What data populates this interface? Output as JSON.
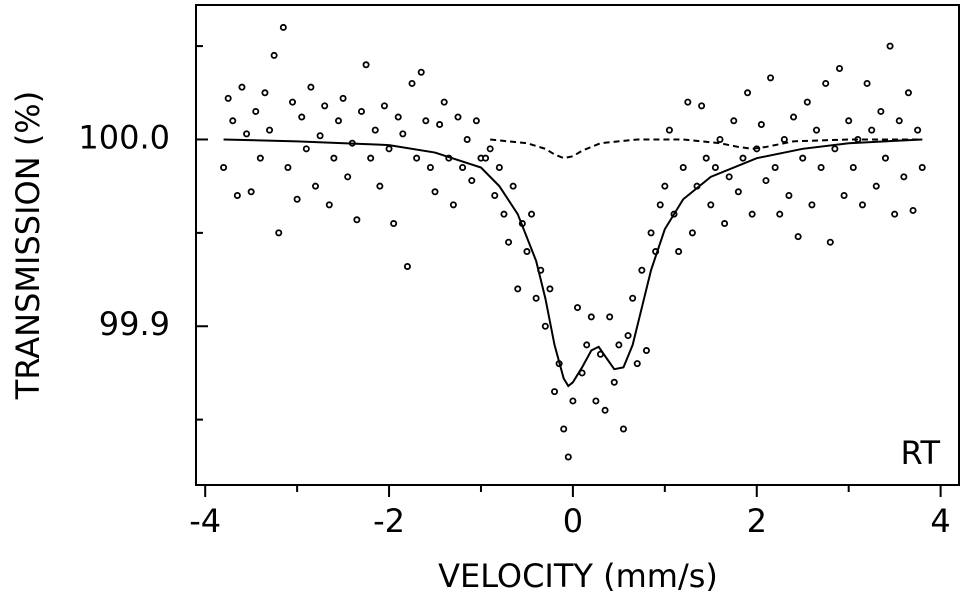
{
  "chart_data": {
    "type": "scatter",
    "xlabel": "VELOCITY (mm/s)",
    "ylabel": "TRANSMISSION (%)",
    "annotation": "RT",
    "xlim": [
      -4.1,
      4.2
    ],
    "ylim": [
      99.815,
      100.072
    ],
    "xticks": [
      -4,
      -2,
      0,
      2,
      4
    ],
    "xminor_ticks": [
      -3,
      -1,
      1,
      3
    ],
    "yticks": [
      {
        "value": 100,
        "label": "100.0"
      },
      99.9
    ],
    "yminor_ticks": [
      99.85,
      99.95,
      100.05
    ],
    "series": [
      {
        "type": "scatter",
        "color": "#000000",
        "x": [
          -3.8,
          -3.75,
          -3.7,
          -3.65,
          -3.6,
          -3.55,
          -3.5,
          -3.45,
          -3.4,
          -3.35,
          -3.3,
          -3.25,
          -3.2,
          -3.15,
          -3.1,
          -3.05,
          -3.0,
          -2.95,
          -2.9,
          -2.85,
          -2.8,
          -2.75,
          -2.7,
          -2.65,
          -2.6,
          -2.55,
          -2.5,
          -2.45,
          -2.4,
          -2.35,
          -2.3,
          -2.25,
          -2.2,
          -2.15,
          -2.1,
          -2.05,
          -2.0,
          -1.95,
          -1.9,
          -1.85,
          -1.8,
          -1.75,
          -1.7,
          -1.65,
          -1.6,
          -1.55,
          -1.5,
          -1.45,
          -1.4,
          -1.35,
          -1.3,
          -1.25,
          -1.2,
          -1.15,
          -1.1,
          -1.05,
          -1.0,
          -0.95,
          -0.9,
          -0.85,
          -0.8,
          -0.75,
          -0.7,
          -0.65,
          -0.6,
          -0.55,
          -0.5,
          -0.45,
          -0.4,
          -0.35,
          -0.3,
          -0.25,
          -0.2,
          -0.15,
          -0.1,
          -0.05,
          0,
          0.05,
          0.1,
          0.15,
          0.2,
          0.25,
          0.3,
          0.35,
          0.4,
          0.45,
          0.5,
          0.55,
          0.6,
          0.65,
          0.7,
          0.75,
          0.8,
          0.85,
          0.9,
          0.95,
          1.0,
          1.05,
          1.1,
          1.15,
          1.2,
          1.25,
          1.3,
          1.35,
          1.4,
          1.45,
          1.5,
          1.55,
          1.6,
          1.65,
          1.7,
          1.75,
          1.8,
          1.85,
          1.9,
          1.95,
          2.0,
          2.05,
          2.1,
          2.15,
          2.2,
          2.25,
          2.3,
          2.35,
          2.4,
          2.45,
          2.5,
          2.55,
          2.6,
          2.65,
          2.7,
          2.75,
          2.8,
          2.85,
          2.9,
          2.95,
          3.0,
          3.05,
          3.1,
          3.15,
          3.2,
          3.25,
          3.3,
          3.35,
          3.4,
          3.45,
          3.5,
          3.55,
          3.6,
          3.65,
          3.7,
          3.75,
          3.8
        ],
        "values": [
          99.985,
          100.022,
          100.01,
          99.97,
          100.028,
          100.003,
          99.972,
          100.015,
          99.99,
          100.025,
          100.005,
          100.045,
          99.95,
          100.06,
          99.985,
          100.02,
          99.968,
          100.012,
          99.995,
          100.028,
          99.975,
          100.002,
          100.018,
          99.965,
          99.99,
          100.01,
          100.022,
          99.98,
          99.998,
          99.957,
          100.015,
          100.04,
          99.99,
          100.005,
          99.975,
          100.018,
          99.995,
          99.955,
          100.012,
          100.003,
          99.932,
          100.03,
          99.99,
          100.036,
          100.01,
          99.985,
          99.972,
          100.008,
          100.02,
          99.99,
          99.965,
          100.012,
          99.985,
          100.0,
          99.978,
          100.01,
          99.99,
          99.99,
          99.995,
          99.97,
          99.985,
          99.96,
          99.945,
          99.975,
          99.92,
          99.955,
          99.94,
          99.96,
          99.915,
          99.93,
          99.9,
          99.92,
          99.865,
          99.88,
          99.845,
          99.83,
          99.86,
          99.91,
          99.875,
          99.89,
          99.905,
          99.86,
          99.885,
          99.855,
          99.905,
          99.87,
          99.89,
          99.845,
          99.895,
          99.915,
          99.88,
          99.93,
          99.887,
          99.95,
          99.94,
          99.965,
          99.975,
          100.005,
          99.96,
          99.94,
          99.985,
          100.02,
          99.95,
          99.975,
          100.018,
          99.99,
          99.965,
          99.985,
          100.0,
          99.955,
          99.98,
          100.01,
          99.972,
          99.99,
          100.025,
          99.96,
          99.995,
          100.008,
          99.978,
          100.033,
          99.985,
          99.96,
          100.0,
          99.97,
          100.012,
          99.948,
          99.99,
          100.02,
          99.965,
          100.005,
          99.985,
          100.03,
          99.945,
          99.995,
          100.038,
          99.97,
          100.01,
          99.985,
          100.0,
          99.965,
          100.03,
          100.005,
          99.975,
          100.015,
          99.99,
          100.05,
          99.96,
          100.01,
          99.98,
          100.025,
          99.962,
          100.005,
          99.985
        ]
      },
      {
        "type": "line",
        "style": "solid",
        "color": "#000000",
        "x": [
          -3.8,
          -3,
          -2,
          -1.5,
          -1,
          -0.8,
          -0.6,
          -0.4,
          -0.3,
          -0.2,
          -0.1,
          -0.05,
          0,
          0.1,
          0.2,
          0.28,
          0.35,
          0.45,
          0.55,
          0.65,
          0.75,
          0.85,
          1.0,
          1.2,
          1.5,
          2,
          2.5,
          3,
          3.8
        ],
        "values": [
          100.0,
          99.999,
          99.997,
          99.993,
          99.985,
          99.975,
          99.96,
          99.935,
          99.915,
          99.89,
          99.872,
          99.868,
          99.87,
          99.878,
          99.887,
          99.889,
          99.884,
          99.877,
          99.878,
          99.89,
          99.91,
          99.93,
          99.952,
          99.968,
          99.98,
          99.99,
          99.995,
          99.998,
          100.0
        ]
      },
      {
        "type": "line",
        "style": "dashed",
        "color": "#000000",
        "x": [
          -0.9,
          -0.5,
          -0.3,
          -0.2,
          -0.1,
          0,
          0.1,
          0.3,
          0.7,
          1.2,
          1.6,
          1.8,
          1.95,
          2.1,
          2.4,
          3.0,
          3.8
        ],
        "values": [
          100.0,
          99.998,
          99.995,
          99.992,
          99.99,
          99.991,
          99.994,
          99.998,
          100.0,
          100.0,
          99.998,
          99.996,
          99.995,
          99.996,
          99.999,
          100.0,
          100.0
        ]
      }
    ]
  }
}
